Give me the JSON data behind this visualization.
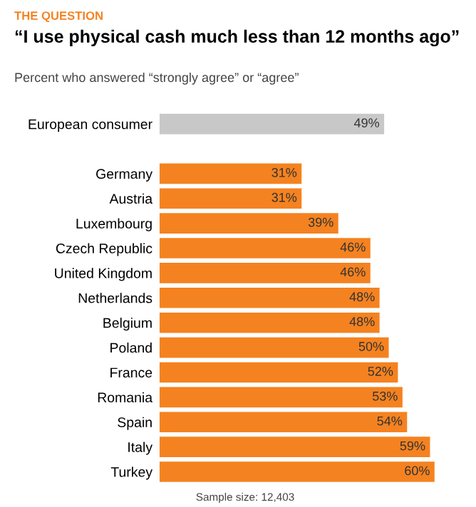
{
  "chart_data": {
    "type": "bar",
    "orientation": "horizontal",
    "title": "“I use physical cash much less than 12 months ago”",
    "subtitle": "Percent who answered “strongly agree” or “agree”",
    "annotations": [
      "THE QUESTION",
      "Sample size: 12,403"
    ],
    "categories": [
      "European consumer",
      null,
      "Germany",
      "Austria",
      "Luxembourg",
      "Czech Republic",
      "United Kingdom",
      "Netherlands",
      "Belgium",
      "Poland",
      "France",
      "Romania",
      "Spain",
      "Italy",
      "Turkey"
    ],
    "values": [
      49,
      null,
      31,
      31,
      39,
      46,
      46,
      48,
      48,
      50,
      52,
      53,
      54,
      59,
      60
    ],
    "value_labels": [
      "49%",
      null,
      "31%",
      "31%",
      "39%",
      "46%",
      "46%",
      "48%",
      "48%",
      "50%",
      "52%",
      "53%",
      "54%",
      "59%",
      "60%"
    ],
    "colors": [
      "#c8c8c8",
      null,
      "#f58220",
      "#f58220",
      "#f58220",
      "#f58220",
      "#f58220",
      "#f58220",
      "#f58220",
      "#f58220",
      "#f58220",
      "#f58220",
      "#f58220",
      "#f58220",
      "#f58220"
    ],
    "tick_labels": "y"
  }
}
